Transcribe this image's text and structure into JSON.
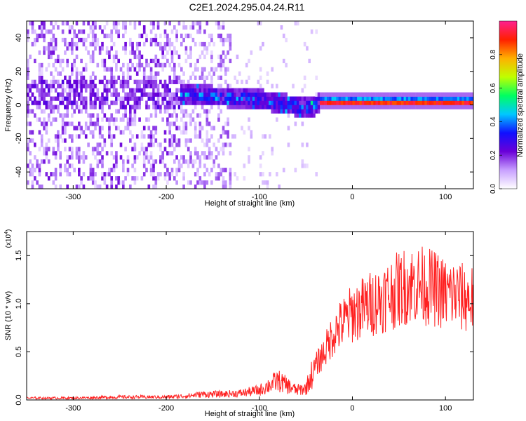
{
  "title": "C2E1.2024.295.04.24.R11",
  "chart_data": [
    {
      "type": "heatmap",
      "xlabel": "Height of straight line (km)",
      "ylabel": "Frequency (Hz)",
      "xlim": [
        -350,
        130
      ],
      "ylim": [
        -50,
        50
      ],
      "xticks": [
        -300,
        -200,
        -100,
        0,
        100
      ],
      "yticks": [
        -40,
        -20,
        0,
        20,
        40
      ],
      "colorbar": {
        "label": "Normalized spectral amplitude",
        "range": [
          0,
          1
        ],
        "ticks": [
          "0.0",
          "0.2",
          "0.4",
          "0.6",
          "0.8"
        ],
        "colors": [
          "#ffffff",
          "#c8a0ff",
          "#6a00d8",
          "#1010ff",
          "#00c8ff",
          "#00ff60",
          "#c0ff00",
          "#ffb000",
          "#ff2000",
          "#ff2090"
        ]
      },
      "ridge": {
        "x": [
          -180,
          -150,
          -120,
          -100,
          -80,
          -60,
          -45,
          -35,
          -20,
          0,
          50,
          100,
          130
        ],
        "y": [
          5,
          4,
          3,
          2,
          0,
          -2,
          -3,
          0,
          1,
          1,
          1,
          1,
          1
        ]
      }
    },
    {
      "type": "line",
      "xlabel": "Height of straight line (km)",
      "ylabel": "SNR (10 * v/v)",
      "scale_note": "(x10",
      "scale_exp": "4",
      "xlim": [
        -350,
        130
      ],
      "ylim": [
        0,
        1.75
      ],
      "xticks": [
        -300,
        -200,
        -100,
        0,
        100
      ],
      "yticks": [
        "0.0",
        "0.5",
        "1.0",
        "1.5"
      ],
      "line_color": "#ff2020",
      "x": [
        -350,
        -300,
        -250,
        -200,
        -180,
        -160,
        -140,
        -120,
        -100,
        -80,
        -60,
        -50,
        -40,
        -30,
        -20,
        -10,
        0,
        10,
        20,
        30,
        40,
        50,
        60,
        70,
        80,
        90,
        100,
        110,
        120,
        130
      ],
      "y": [
        0.02,
        0.02,
        0.03,
        0.03,
        0.04,
        0.06,
        0.06,
        0.07,
        0.1,
        0.2,
        0.1,
        0.12,
        0.35,
        0.5,
        0.7,
        0.8,
        0.9,
        0.95,
        1.0,
        1.05,
        1.1,
        1.15,
        1.2,
        1.2,
        1.18,
        1.15,
        1.1,
        1.1,
        1.05,
        1.05
      ]
    }
  ]
}
